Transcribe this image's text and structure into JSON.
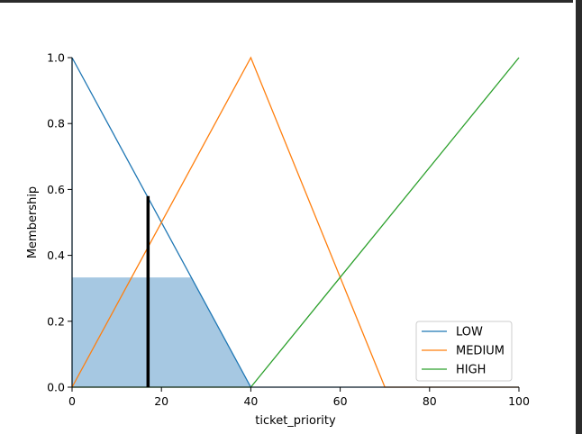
{
  "chart_data": {
    "type": "line",
    "title": "",
    "xlabel": "ticket_priority",
    "ylabel": "Membership",
    "xlim": [
      0,
      100
    ],
    "ylim": [
      0,
      1.0
    ],
    "xticks": [
      "0",
      "20",
      "40",
      "60",
      "80",
      "100"
    ],
    "yticks": [
      "0.0",
      "0.2",
      "0.4",
      "0.6",
      "0.8",
      "1.0"
    ],
    "grid": false,
    "legend_position": "lower-right",
    "series": [
      {
        "name": "LOW",
        "color": "#1f77b4",
        "x": [
          0,
          0,
          40,
          100
        ],
        "y": [
          0,
          1.0,
          0,
          0
        ]
      },
      {
        "name": "MEDIUM",
        "color": "#ff7f0e",
        "x": [
          0,
          40,
          70,
          100
        ],
        "y": [
          0,
          1.0,
          0,
          0
        ]
      },
      {
        "name": "HIGH",
        "color": "#2ca02c",
        "x": [
          0,
          40,
          100
        ],
        "y": [
          0,
          0,
          1.0
        ]
      }
    ],
    "activation": {
      "fill_color": "#a6c8e2",
      "x": [
        0,
        0,
        26.7,
        40
      ],
      "y": [
        0,
        0.333,
        0.333,
        0
      ]
    },
    "input_marker": {
      "x": 17,
      "y": 0.58,
      "color": "#000000"
    }
  }
}
